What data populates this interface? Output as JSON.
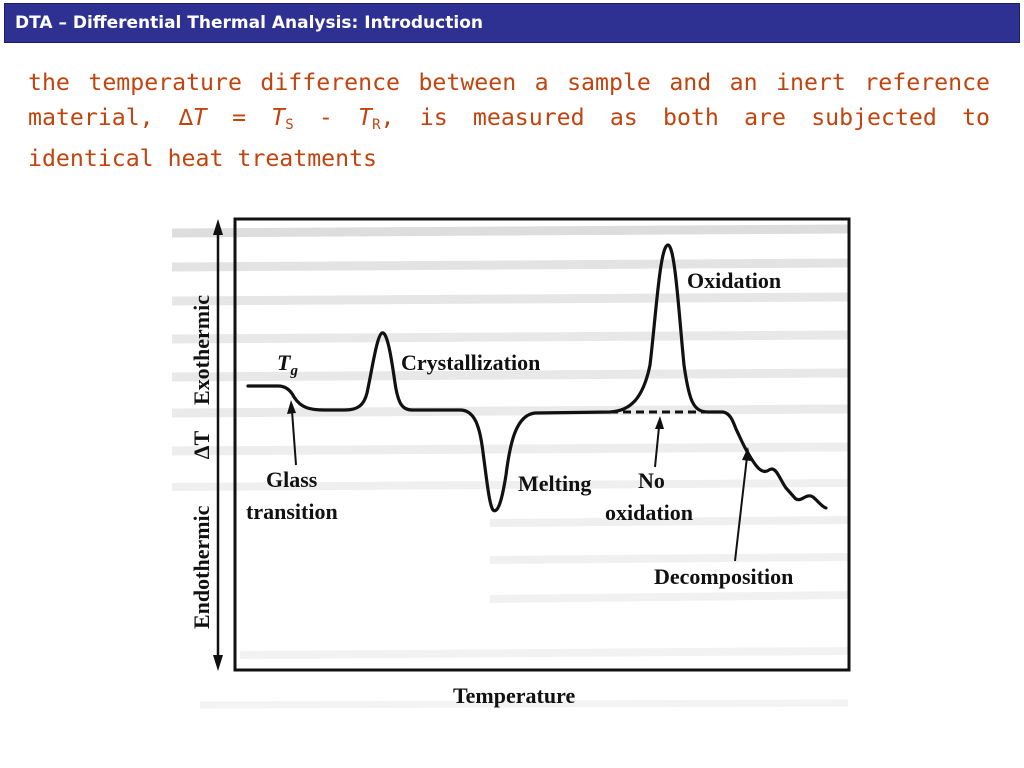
{
  "slide": {
    "title": "DTA – Differential Thermal Analysis: Introduction",
    "text_part1": "the temperature difference between a sample and an inert reference material, ",
    "delta_symbol": "∆",
    "T": "T",
    "equals": " = ",
    "T_s": "T",
    "s_sub": "S",
    "minus": " - ",
    "T_r": "T",
    "r_sub": "R",
    "text_part2": ", is measured as both are subjected to identical heat treatments"
  },
  "figure": {
    "y_axis_top": "Exothermic",
    "y_axis_mid": "∆T",
    "y_axis_bottom": "Endothermic",
    "x_axis": "Temperature",
    "labels": {
      "tg_T": "T",
      "tg_g": "g",
      "crystallization": "Crystallization",
      "oxidation": "Oxidation",
      "glass": "Glass",
      "transition": "transition",
      "melting": "Melting",
      "no": "No",
      "no_oxidation": "oxidation",
      "decomposition": "Decomposition"
    },
    "colors": {
      "title_bar": "#2e3192",
      "body_text": "#c1440e",
      "curve": "#111111"
    }
  }
}
